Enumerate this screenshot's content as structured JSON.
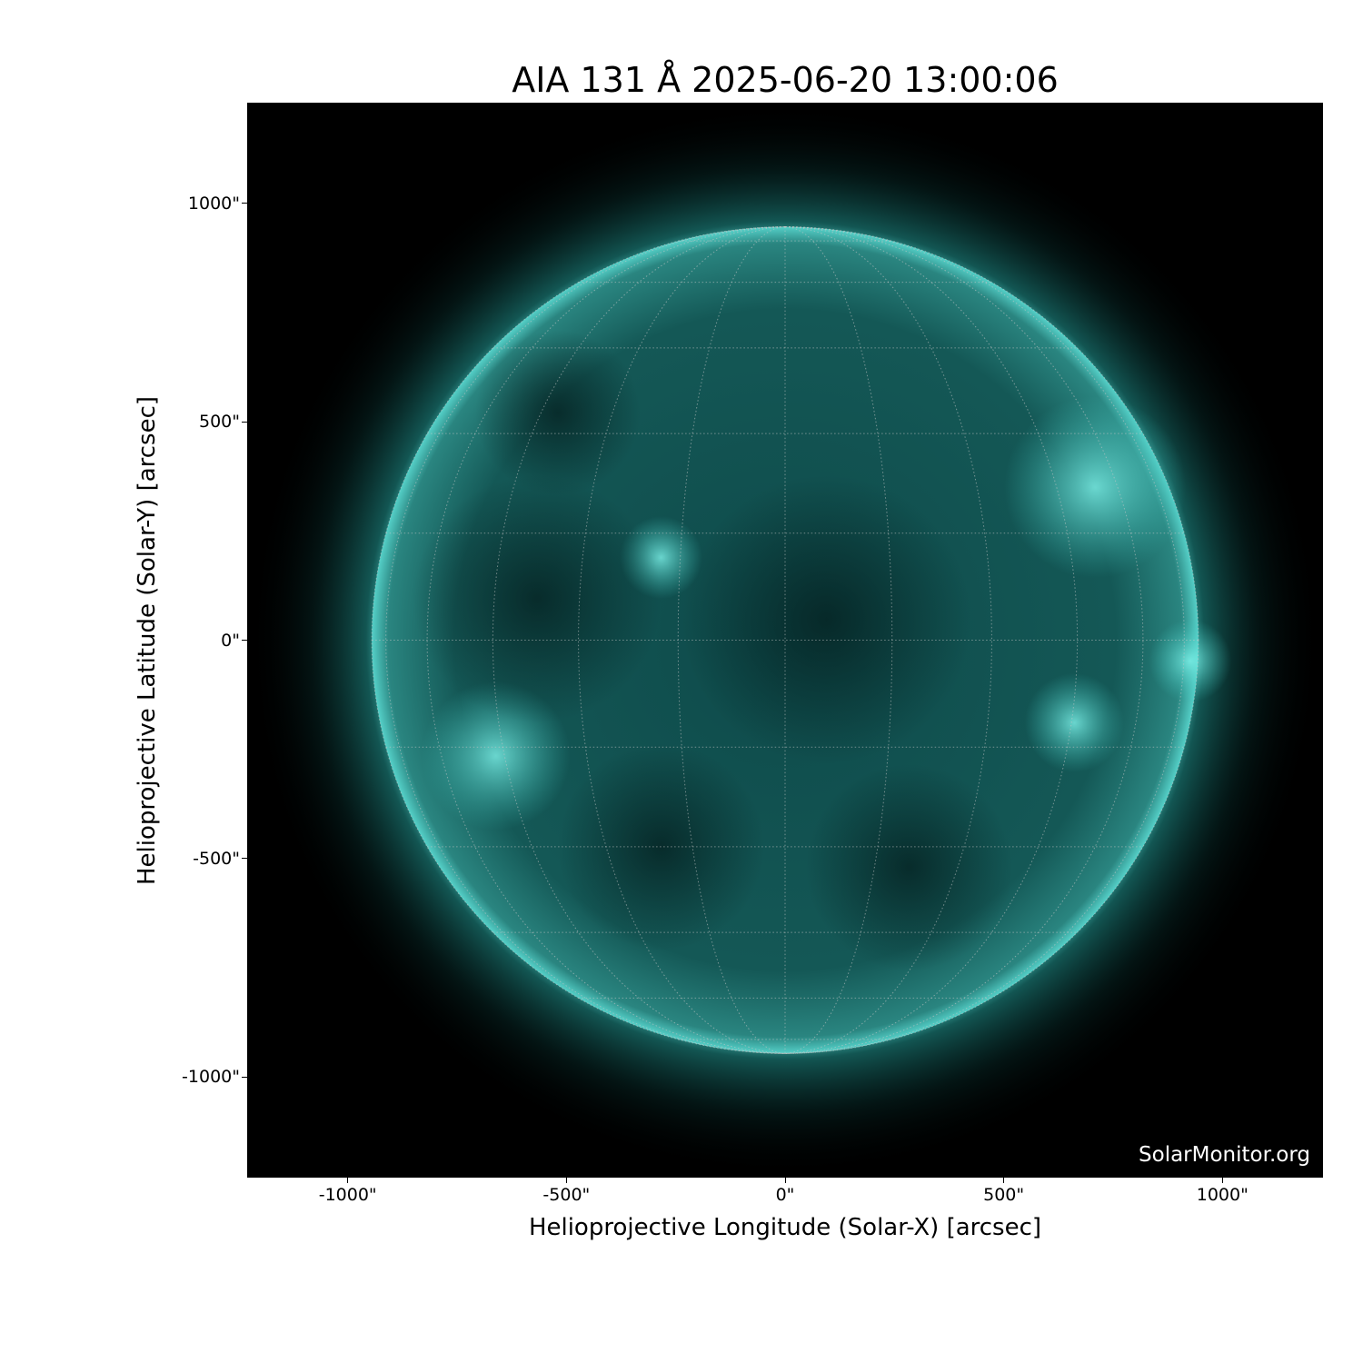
{
  "title": "AIA 131 Å 2025-06-20 13:00:06",
  "watermark": "SolarMonitor.org",
  "xlabel": "Helioprojective Longitude (Solar-X) [arcsec]",
  "ylabel": "Helioprojective Latitude (Solar-Y) [arcsec]",
  "x_ticks": [
    "-1000\"",
    "-500\"",
    "0\"",
    "500\"",
    "1000\""
  ],
  "y_ticks": [
    "1000\"",
    "500\"",
    "0\"",
    "-500\"",
    "-1000\""
  ],
  "x_tick_values": [
    -1000,
    -500,
    0,
    500,
    1000
  ],
  "y_tick_values": [
    1000,
    500,
    0,
    -500,
    -1000
  ],
  "axis_range_arcsec": {
    "x": [
      -1230,
      1230
    ],
    "y": [
      -1230,
      1230
    ]
  },
  "solar_radius_arcsec": 945,
  "grid_spacing_deg": 15,
  "colors": {
    "sun_core": "#0e4a4a",
    "sun_limb": "#5fe8e0",
    "background": "#000000",
    "grid": "#c8c8c8"
  }
}
